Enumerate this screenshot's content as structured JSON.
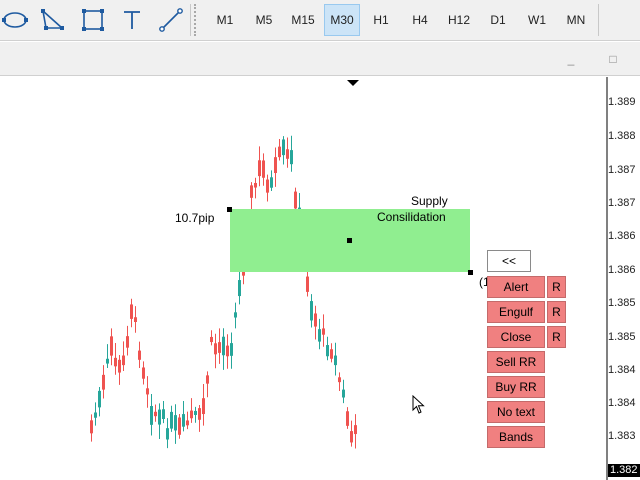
{
  "toolbar": {
    "tools": [
      {
        "name": "ellipse-tool",
        "icon": "ellipse-icon"
      },
      {
        "name": "triangle-tool",
        "icon": "triangle-icon"
      },
      {
        "name": "rectangle-tool",
        "icon": "rectangle-icon"
      },
      {
        "name": "text-tool",
        "icon": "text-icon"
      },
      {
        "name": "trendline-tool",
        "icon": "line-icon"
      }
    ],
    "timeframes": [
      "M1",
      "M5",
      "M15",
      "M30",
      "H1",
      "H4",
      "H12",
      "D1",
      "W1",
      "MN"
    ],
    "active_timeframe": "M30"
  },
  "window": {
    "minimize_glyph": "_",
    "maximize_glyph": "□"
  },
  "chart": {
    "price_labels": [
      "1.389",
      "1.388",
      "1.387",
      "1.387",
      "1.386",
      "1.386",
      "1.385",
      "1.385",
      "1.384",
      "1.384",
      "1.383"
    ],
    "current_price": "1.382",
    "zone_label_1": "Supply",
    "zone_label_2": "Consilidation",
    "pip_label": "10.7pip",
    "edge_label": "(1",
    "zone_color": "#90ee90",
    "bull_color": "#26a69a",
    "bear_color": "#ef5350"
  },
  "panel": {
    "collapse_label": "<<",
    "buttons": [
      {
        "label": "Alert",
        "reset": "R"
      },
      {
        "label": "Engulf",
        "reset": "R"
      },
      {
        "label": "Close",
        "reset": "R"
      },
      {
        "label": "Sell RR"
      },
      {
        "label": "Buy RR"
      },
      {
        "label": "No text"
      },
      {
        "label": "Bands"
      }
    ],
    "button_color": "#f08080"
  }
}
